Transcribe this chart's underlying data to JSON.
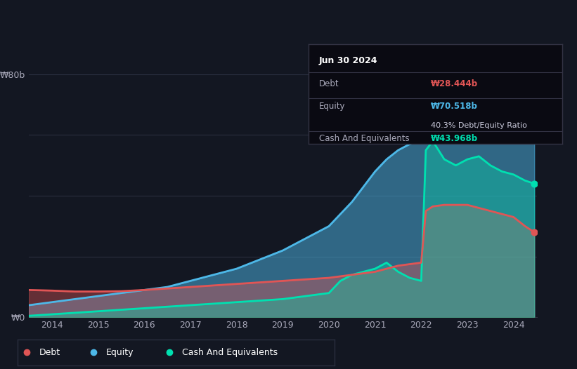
{
  "background_color": "#131722",
  "plot_bg_color": "#1a1f2e",
  "y_label_top": "₩80b",
  "y_label_bottom": "₩0",
  "debt_color": "#e05555",
  "equity_color": "#4db8e8",
  "cash_color": "#00e0b0",
  "grid_color": "#2a2f3f",
  "debt_label": "Debt",
  "equity_label": "Equity",
  "cash_label": "Cash And Equivalents",
  "tooltip_date": "Jun 30 2024",
  "tooltip_debt": "₩28.444b",
  "tooltip_equity": "₩70.518b",
  "tooltip_ratio": "40.3% Debt/Equity Ratio",
  "tooltip_cash": "₩43.968b",
  "years": [
    2013.5,
    2014.0,
    2014.5,
    2015.0,
    2015.5,
    2016.0,
    2016.5,
    2017.0,
    2017.5,
    2018.0,
    2018.5,
    2019.0,
    2019.5,
    2020.0,
    2020.25,
    2020.5,
    2020.75,
    2021.0,
    2021.25,
    2021.5,
    2021.75,
    2022.0,
    2022.1,
    2022.25,
    2022.5,
    2022.75,
    2023.0,
    2023.25,
    2023.5,
    2023.75,
    2024.0,
    2024.25,
    2024.45
  ],
  "debt": [
    9.0,
    8.8,
    8.5,
    8.5,
    8.6,
    9.0,
    9.5,
    10.0,
    10.5,
    11.0,
    11.5,
    12.0,
    12.5,
    13.0,
    13.5,
    14.0,
    14.5,
    15.0,
    16.0,
    17.0,
    17.5,
    18.0,
    35.0,
    36.5,
    37.0,
    37.0,
    37.0,
    36.0,
    35.0,
    34.0,
    33.0,
    30.0,
    28.0
  ],
  "equity": [
    4.0,
    5.0,
    6.0,
    7.0,
    8.0,
    9.0,
    10.0,
    12.0,
    14.0,
    16.0,
    19.0,
    22.0,
    26.0,
    30.0,
    34.0,
    38.0,
    43.0,
    48.0,
    52.0,
    55.0,
    57.0,
    58.0,
    58.5,
    60.0,
    62.0,
    63.0,
    64.0,
    65.0,
    66.5,
    68.0,
    69.0,
    70.0,
    71.5
  ],
  "cash": [
    0.5,
    1.0,
    1.5,
    2.0,
    2.5,
    3.0,
    3.5,
    4.0,
    4.5,
    5.0,
    5.5,
    6.0,
    7.0,
    8.0,
    12.0,
    14.0,
    15.0,
    16.0,
    18.0,
    15.0,
    13.0,
    12.0,
    55.0,
    58.0,
    52.0,
    50.0,
    52.0,
    53.0,
    50.0,
    48.0,
    47.0,
    45.0,
    44.0
  ],
  "ylim": [
    0,
    85
  ],
  "xlim": [
    2013.5,
    2024.5
  ],
  "x_tick_positions": [
    2014,
    2015,
    2016,
    2017,
    2018,
    2019,
    2020,
    2021,
    2022,
    2023,
    2024
  ],
  "grid_y": [
    0,
    20,
    40,
    60,
    80
  ]
}
